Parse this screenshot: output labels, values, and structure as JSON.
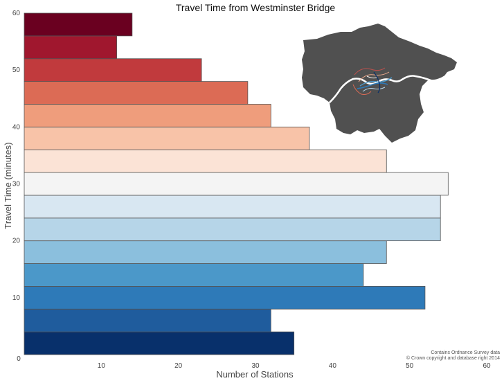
{
  "chart_data": {
    "type": "bar",
    "orientation": "horizontal",
    "title": "Travel Time from Westminster Bridge",
    "xlabel": "Number of Stations",
    "ylabel": "Travel Time (minutes)",
    "xlim": [
      0,
      60
    ],
    "ylim": [
      0,
      60
    ],
    "xticks": [
      "0",
      "10",
      "20",
      "30",
      "40",
      "50",
      "60"
    ],
    "yticks": [
      "10",
      "20",
      "30",
      "40",
      "50",
      "60"
    ],
    "grid": false,
    "bin_width": 4,
    "bins": [
      {
        "start": 0,
        "end": 4,
        "value": 35,
        "color": "#08306b"
      },
      {
        "start": 4,
        "end": 8,
        "value": 32,
        "color": "#1f5c9d"
      },
      {
        "start": 8,
        "end": 12,
        "value": 52,
        "color": "#2e7ab8"
      },
      {
        "start": 12,
        "end": 16,
        "value": 44,
        "color": "#4b98c9"
      },
      {
        "start": 16,
        "end": 20,
        "value": 47,
        "color": "#8bbfdd"
      },
      {
        "start": 20,
        "end": 24,
        "value": 54,
        "color": "#b6d5e8"
      },
      {
        "start": 24,
        "end": 28,
        "value": 54,
        "color": "#d8e7f2"
      },
      {
        "start": 28,
        "end": 32,
        "value": 55,
        "color": "#f4f4f4"
      },
      {
        "start": 32,
        "end": 36,
        "value": 47,
        "color": "#fbe3d6"
      },
      {
        "start": 36,
        "end": 40,
        "value": 37,
        "color": "#f8c3a8"
      },
      {
        "start": 40,
        "end": 44,
        "value": 32,
        "color": "#ef9d7c"
      },
      {
        "start": 44,
        "end": 48,
        "value": 29,
        "color": "#dc6b55"
      },
      {
        "start": 48,
        "end": 52,
        "value": 23,
        "color": "#c13a3d"
      },
      {
        "start": 52,
        "end": 56,
        "value": 12,
        "color": "#a0172e"
      },
      {
        "start": 56,
        "end": 60,
        "value": 14,
        "color": "#6a0020"
      }
    ],
    "annotation": [
      "Contains Ordnance Survey data",
      "© Crown copyright and database right 2014"
    ]
  },
  "inset_map": {
    "land_color": "#505050",
    "river_color": "#ffffff"
  }
}
